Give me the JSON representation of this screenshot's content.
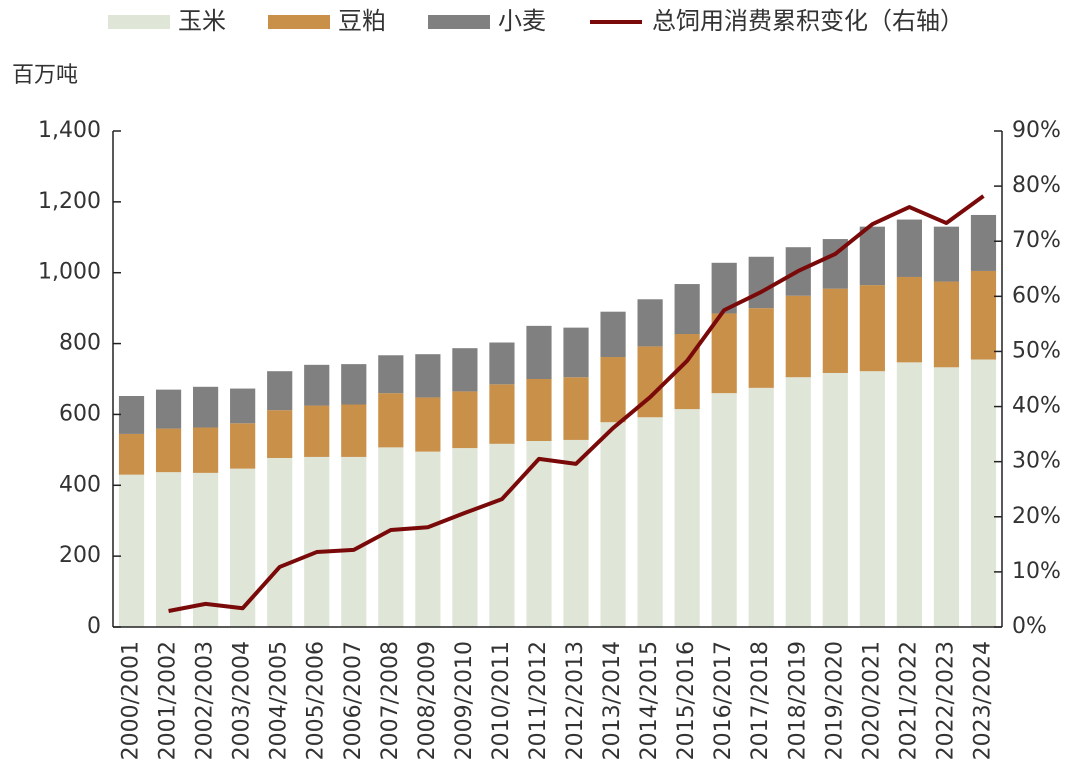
{
  "chart_data": {
    "type": "bar",
    "unit_label": "百万吨",
    "categories": [
      "2000/2001",
      "2001/2002",
      "2002/2003",
      "2003/2004",
      "2004/2005",
      "2005/2006",
      "2006/2007",
      "2007/2008",
      "2008/2009",
      "2009/2010",
      "2010/2011",
      "2011/2012",
      "2012/2013",
      "2013/2014",
      "2014/2015",
      "2015/2016",
      "2016/2017",
      "2017/2018",
      "2018/2019",
      "2019/2020",
      "2020/2021",
      "2021/2022",
      "2022/2023",
      "2023/2024"
    ],
    "series": [
      {
        "name": "玉米",
        "color": "#dfe6d8",
        "values": [
          430,
          437,
          435,
          447,
          477,
          480,
          480,
          507,
          495,
          505,
          517,
          525,
          528,
          578,
          592,
          615,
          660,
          675,
          705,
          717,
          722,
          747,
          733,
          755
        ]
      },
      {
        "name": "豆粕",
        "color": "#c9904a",
        "values": [
          115,
          123,
          128,
          128,
          135,
          145,
          148,
          153,
          153,
          160,
          168,
          175,
          177,
          184,
          200,
          212,
          225,
          225,
          230,
          238,
          243,
          241,
          242,
          250
        ]
      },
      {
        "name": "小麦",
        "color": "#808080",
        "values": [
          107,
          110,
          115,
          98,
          110,
          115,
          114,
          107,
          122,
          122,
          118,
          150,
          140,
          128,
          133,
          141,
          143,
          145,
          137,
          140,
          165,
          162,
          155,
          158
        ]
      },
      {
        "name": "总饲用消费累积变化（右轴）",
        "color": "#7a0a0a",
        "type": "line",
        "axis": "y2",
        "values": [
          null,
          2.9,
          4.2,
          3.4,
          10.9,
          13.6,
          14.0,
          17.6,
          18.1,
          20.7,
          23.2,
          30.5,
          29.6,
          36.1,
          41.7,
          48.3,
          57.5,
          60.8,
          64.6,
          67.7,
          73.1,
          76.2,
          73.3,
          78.2
        ]
      }
    ],
    "ylim": [
      0,
      1400
    ],
    "yticks": [
      0,
      200,
      400,
      600,
      800,
      {
        "value": 1000,
        "label": "1,000"
      },
      {
        "value": 1200,
        "label": "1,200"
      },
      {
        "value": 1400,
        "label": "1,400"
      }
    ],
    "y2lim": [
      0,
      90
    ],
    "y2ticks": [
      {
        "value": 0,
        "label": "0%"
      },
      {
        "value": 10,
        "label": "10%"
      },
      {
        "value": 20,
        "label": "20%"
      },
      {
        "value": 30,
        "label": "30%"
      },
      {
        "value": 40,
        "label": "40%"
      },
      {
        "value": 50,
        "label": "50%"
      },
      {
        "value": 60,
        "label": "60%"
      },
      {
        "value": 70,
        "label": "70%"
      },
      {
        "value": 80,
        "label": "80%"
      },
      {
        "value": 90,
        "label": "90%"
      }
    ],
    "stacked": true,
    "legend": "top"
  }
}
